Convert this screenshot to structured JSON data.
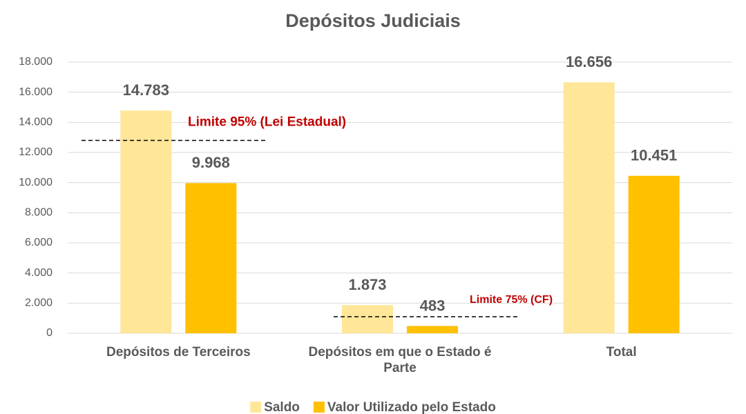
{
  "chart_data": {
    "type": "bar",
    "title": "Depósitos Judiciais",
    "categories": [
      "Depósitos de Terceiros",
      "Depósitos em que o Estado é Parte",
      "Total"
    ],
    "series": [
      {
        "name": "Saldo",
        "color": "#ffe699",
        "values": [
          14783,
          1873,
          16656
        ],
        "value_labels": [
          "14.783",
          "1.873",
          "16.656"
        ]
      },
      {
        "name": "Valor Utilizado pelo Estado",
        "color": "#ffc000",
        "values": [
          9968,
          483,
          10451
        ],
        "value_labels": [
          "9.968",
          "483",
          "10.451"
        ]
      }
    ],
    "ylim": [
      0,
      18000
    ],
    "yticks": [
      0,
      {
        "value": 2000,
        "label": "2.000"
      },
      {
        "value": 4000,
        "label": "4.000"
      },
      {
        "value": 6000,
        "label": "6.000"
      },
      {
        "value": 8000,
        "label": "8.000"
      },
      {
        "value": 10000,
        "label": "10.000"
      },
      {
        "value": 12000,
        "label": "12.000"
      },
      {
        "value": 14000,
        "label": "14.000"
      },
      {
        "value": 16000,
        "label": "16.000"
      },
      {
        "value": 18000,
        "label": "18.000"
      }
    ],
    "grid": true,
    "annotations": [
      {
        "text": "Limite 95% (Lei Estadual)",
        "value": 12800,
        "color": "#c00000"
      },
      {
        "text": "Limite 75% (CF)",
        "value": 1100,
        "color": "#c00000"
      }
    ],
    "legend": "bottom"
  }
}
